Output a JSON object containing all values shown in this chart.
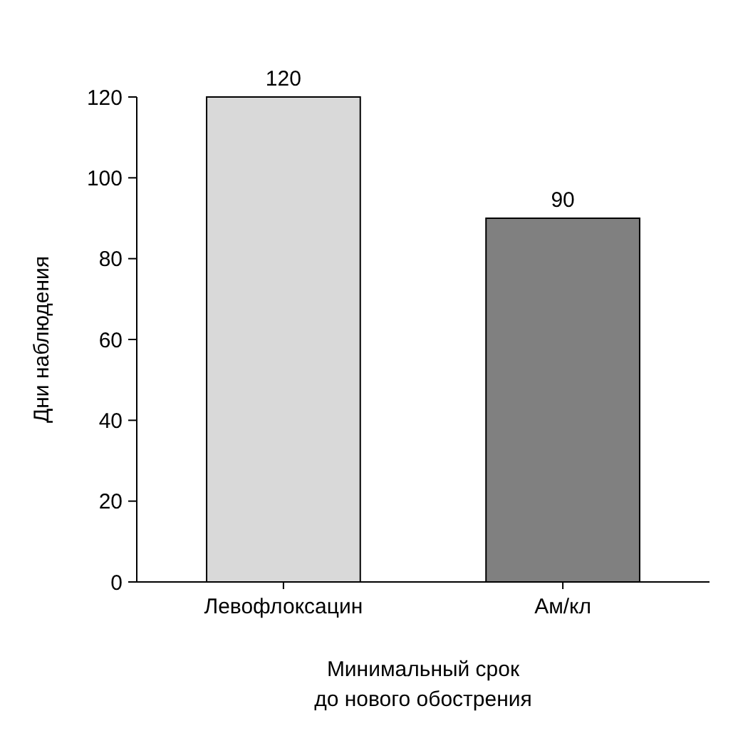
{
  "chart_data": {
    "type": "bar",
    "categories": [
      "Левофлоксацин",
      "Ам/кл"
    ],
    "values": [
      120,
      90
    ],
    "colors": [
      "#d9d9d9",
      "#808080"
    ],
    "ylim": [
      0,
      120
    ],
    "yticks": [
      0,
      20,
      40,
      60,
      80,
      100,
      120
    ],
    "ylabel": "Дни наблюдения",
    "xlabel": "Минимальный срок\nдо нового обострения",
    "data_labels": true
  }
}
